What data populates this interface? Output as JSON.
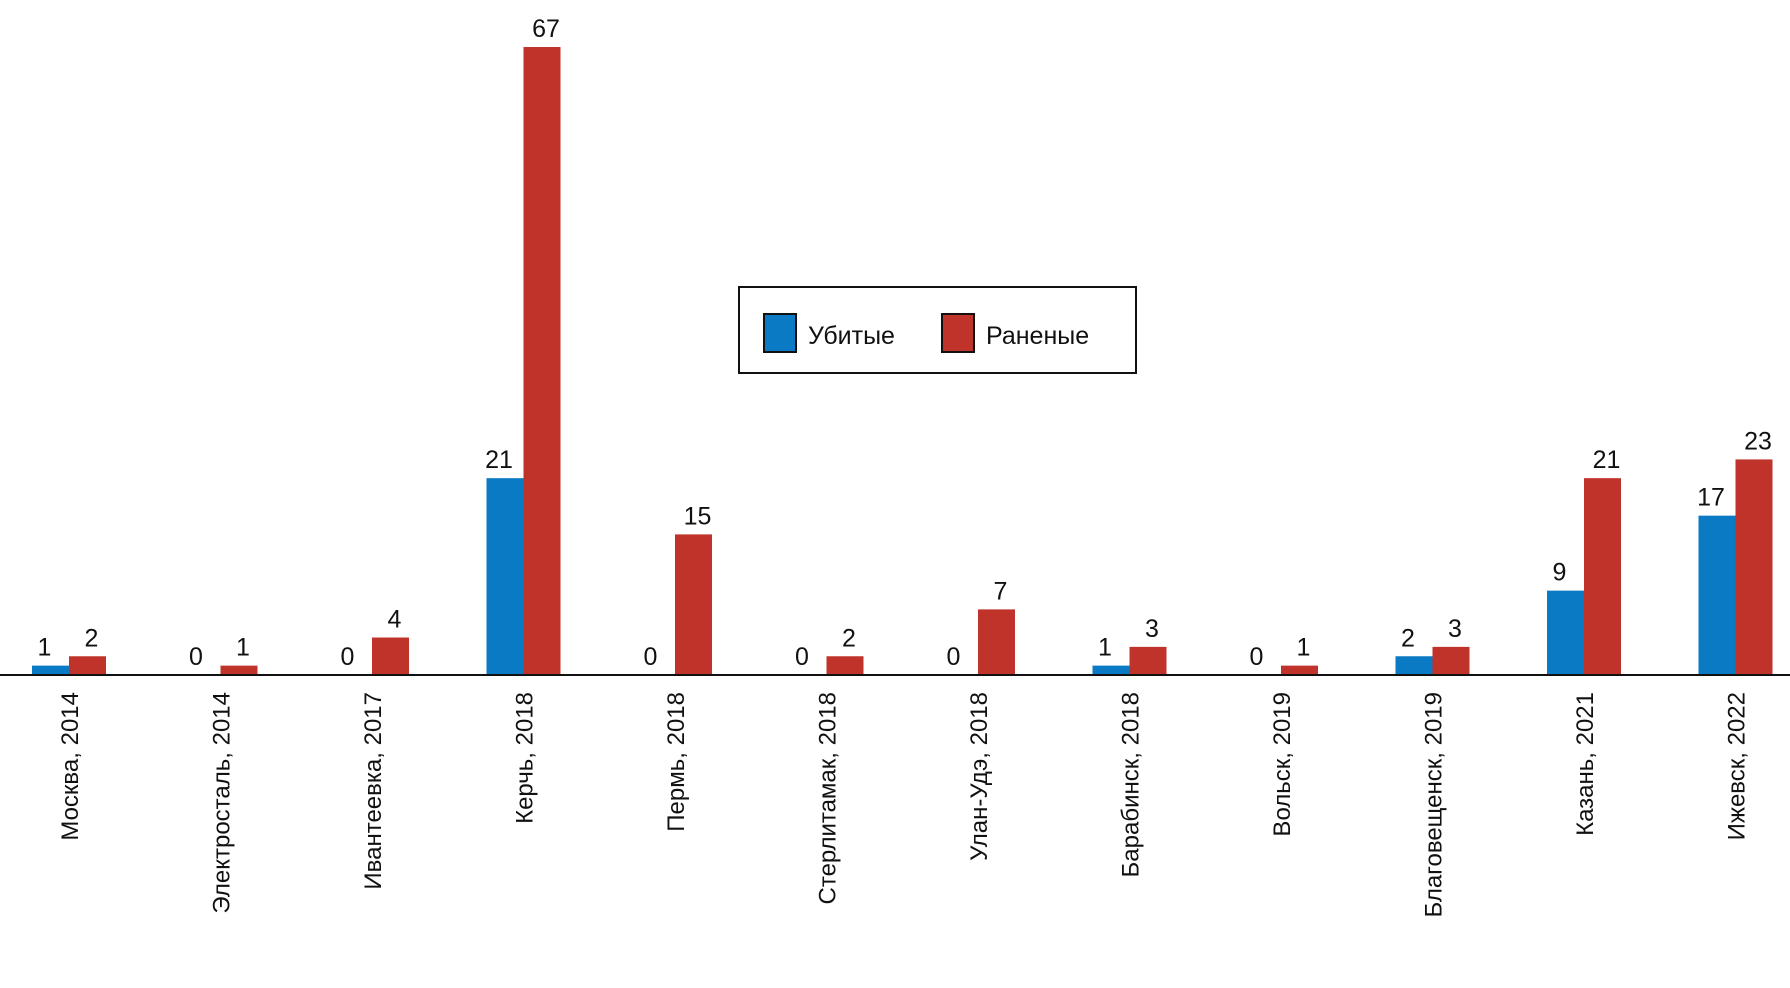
{
  "chart_data": {
    "type": "bar",
    "categories": [
      "Москва, 2014",
      "Электросталь, 2014",
      "Ивантеевка, 2017",
      "Керчь, 2018",
      "Пермь, 2018",
      "Стерлитамак, 2018",
      "Улан-Удэ, 2018",
      "Барабинск, 2018",
      "Вольск, 2019",
      "Благовещенск, 2019",
      "Казань, 2021",
      "Ижевск, 2022"
    ],
    "series": [
      {
        "name": "Убитые",
        "color": "#0a7ac4",
        "values": [
          1,
          0,
          0,
          21,
          0,
          0,
          0,
          1,
          0,
          2,
          9,
          17
        ]
      },
      {
        "name": "Раненые",
        "color": "#c0332a",
        "values": [
          2,
          1,
          4,
          67,
          15,
          2,
          7,
          3,
          1,
          3,
          21,
          23
        ]
      }
    ],
    "ylim": [
      0,
      67
    ],
    "legend_position": "center",
    "grid": false,
    "data_labels": true
  }
}
